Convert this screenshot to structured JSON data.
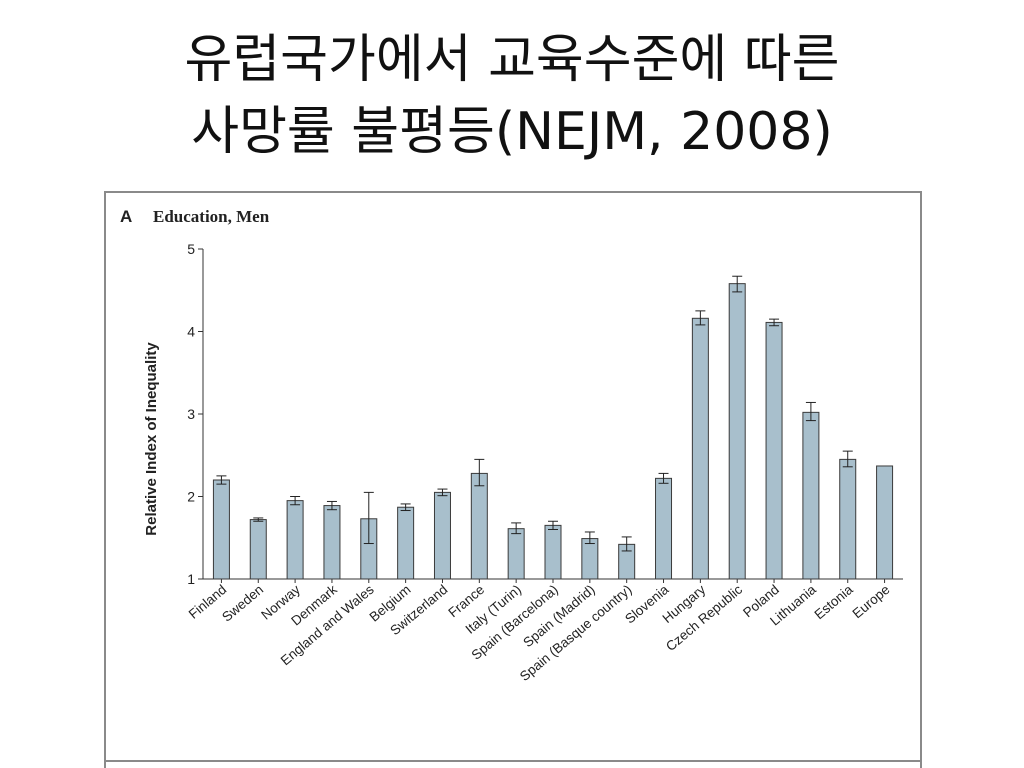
{
  "slide": {
    "title_line1": "유럽국가에서 교육수준에 따른",
    "title_line2": "사망률 불평등(NEJM, 2008)"
  },
  "chart_data": {
    "type": "bar",
    "panel_letter": "A",
    "title": "Education, Men",
    "xlabel": "",
    "ylabel": "Relative Index of Inequality",
    "ylim": [
      1,
      5
    ],
    "yticks": [
      1,
      2,
      3,
      4,
      5
    ],
    "grid": false,
    "bar_color": "#a8bfcc",
    "categories": [
      "Finland",
      "Sweden",
      "Norway",
      "Denmark",
      "England and Wales",
      "Belgium",
      "Switzerland",
      "France",
      "Italy (Turin)",
      "Spain (Barcelona)",
      "Spain (Madrid)",
      "Spain (Basque country)",
      "Slovenia",
      "Hungary",
      "Czech Republic",
      "Poland",
      "Lithuania",
      "Estonia",
      "Europe"
    ],
    "values": [
      2.2,
      1.72,
      1.95,
      1.89,
      1.73,
      1.87,
      2.05,
      2.28,
      1.61,
      1.65,
      1.49,
      1.42,
      2.22,
      4.16,
      4.58,
      4.11,
      3.02,
      2.45,
      2.37
    ],
    "error_low": [
      2.15,
      1.7,
      1.9,
      1.84,
      1.43,
      1.83,
      2.01,
      2.13,
      1.55,
      1.6,
      1.43,
      1.34,
      2.16,
      4.08,
      4.48,
      4.07,
      2.92,
      2.36,
      null
    ],
    "error_high": [
      2.25,
      1.74,
      2.0,
      1.94,
      2.05,
      1.91,
      2.09,
      2.45,
      1.68,
      1.7,
      1.57,
      1.51,
      2.28,
      4.25,
      4.67,
      4.15,
      3.14,
      2.55,
      null
    ]
  }
}
